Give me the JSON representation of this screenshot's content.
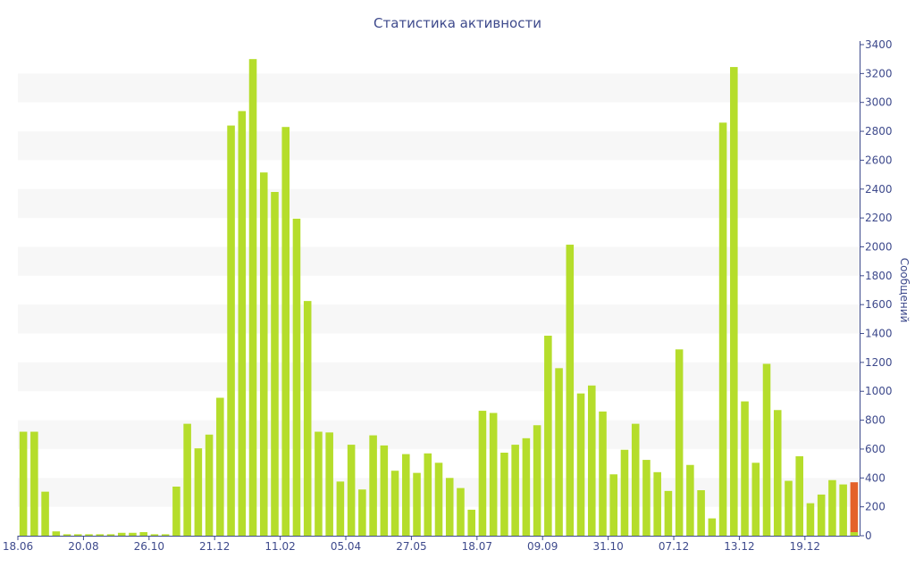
{
  "chart_data": {
    "type": "bar",
    "title": "Статистика активности",
    "xlabel": "",
    "ylabel": "Сообщений",
    "ylim": [
      0,
      3400
    ],
    "yticks": [
      0,
      200,
      400,
      600,
      800,
      1000,
      1200,
      1400,
      1600,
      1800,
      2000,
      2200,
      2400,
      2600,
      2800,
      3000,
      3200,
      3400
    ],
    "grid": "horizontal bands",
    "y_axis_side": "right",
    "x_tick_labels": [
      {
        "label": "18.06",
        "index": 0
      },
      {
        "label": "20.08",
        "index": 6
      },
      {
        "label": "26.10",
        "index": 12
      },
      {
        "label": "21.12",
        "index": 18
      },
      {
        "label": "11.02",
        "index": 24
      },
      {
        "label": "05.04",
        "index": 30
      },
      {
        "label": "27.05",
        "index": 36
      },
      {
        "label": "18.07",
        "index": 42
      },
      {
        "label": "09.09",
        "index": 48
      },
      {
        "label": "31.10",
        "index": 54
      },
      {
        "label": "07.12",
        "index": 60
      },
      {
        "label": "13.12",
        "index": 66
      },
      {
        "label": "19.12",
        "index": 72
      }
    ],
    "colors": {
      "bar": "#b5dd2b",
      "highlight": "#e4622a",
      "axis": "#3e4a8c",
      "band": "#f7f7f7"
    },
    "series": [
      {
        "values": [
          720,
          720,
          305,
          30,
          10,
          10,
          10,
          10,
          10,
          20,
          20,
          25,
          10,
          10,
          340,
          775,
          605,
          700,
          955,
          2840,
          2940,
          3300,
          2515,
          2380,
          2830,
          2195,
          1625,
          720,
          715,
          375,
          630,
          320,
          695,
          625,
          450,
          565,
          435,
          570,
          505,
          400,
          330,
          180,
          865,
          850,
          575,
          630,
          675,
          765,
          1385,
          1160,
          2015,
          985,
          1040,
          860,
          425,
          595,
          775,
          525,
          440,
          310,
          1290,
          490,
          315,
          120,
          2860,
          3245,
          930,
          505,
          1190,
          870,
          380,
          550,
          225,
          285,
          385,
          355,
          370
        ]
      }
    ],
    "highlight_index": 76
  }
}
